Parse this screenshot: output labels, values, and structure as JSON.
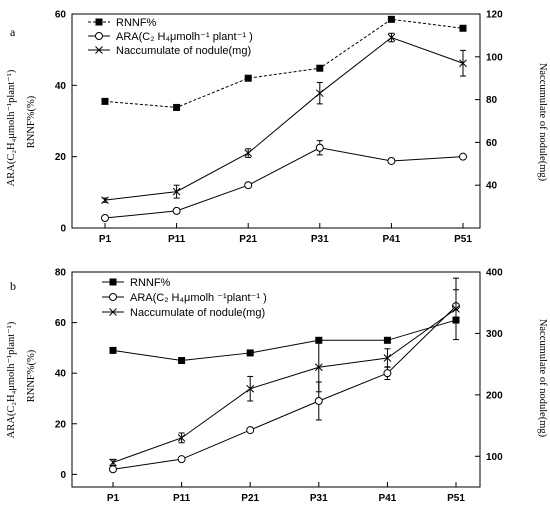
{
  "chart_data": [
    {
      "type": "line",
      "panel_label": "a",
      "categories": [
        "P1",
        "P11",
        "P21",
        "P31",
        "P41",
        "P51"
      ],
      "ylabel_left": "ARA(C₂H₄μmolh⁻¹plant⁻¹)",
      "ylabel_left2": "RNNF%(%)",
      "ylabel_right": "Naccumulate of nodule(mg)",
      "ylim_left": [
        0,
        60
      ],
      "yticks_left": [
        0,
        20,
        40,
        60
      ],
      "ylim_right": [
        20,
        120
      ],
      "yticks_right": [
        40,
        60,
        80,
        100,
        120
      ],
      "legend_position": "top-left",
      "series": [
        {
          "name": "RNNF%",
          "axis": "left",
          "marker": "square",
          "line": "dashed",
          "values": [
            35.5,
            33.8,
            42.0,
            44.8,
            58.5,
            56.0
          ],
          "errors": [
            0,
            0,
            0,
            0,
            0,
            0
          ]
        },
        {
          "name": "ARA(C₂ H₄μmolh⁻¹ plant⁻¹ )",
          "axis": "left",
          "marker": "circle",
          "line": "solid",
          "values": [
            2.8,
            4.8,
            12.0,
            22.5,
            18.8,
            20.0
          ],
          "errors": [
            0,
            0.5,
            0.5,
            2.0,
            0.3,
            0.3
          ]
        },
        {
          "name": "Naccumulate of nodule(mg)",
          "axis": "right",
          "marker": "x",
          "line": "solid",
          "values": [
            33,
            37,
            55,
            83,
            109,
            97
          ],
          "errors": [
            1,
            3,
            2,
            5,
            2,
            6
          ]
        }
      ]
    },
    {
      "type": "line",
      "panel_label": "b",
      "categories": [
        "P1",
        "P11",
        "P21",
        "P31",
        "P41",
        "P51"
      ],
      "ylabel_left": "ARA(C₂H₄μmolh⁻¹plant⁻¹)",
      "ylabel_left2": "RNNF%(%)",
      "ylabel_right": "Naccumulate of nodule(mg)",
      "ylim_left": [
        -5,
        80
      ],
      "yticks_left": [
        0,
        20,
        40,
        60,
        80
      ],
      "ylim_right": [
        50,
        400
      ],
      "yticks_right": [
        100,
        200,
        300,
        400
      ],
      "legend_position": "top-left",
      "series": [
        {
          "name": "RNNF%",
          "axis": "left",
          "marker": "square",
          "line": "solid",
          "values": [
            49.0,
            45.0,
            48.0,
            53.0,
            53.0,
            61.0
          ],
          "errors": [
            0,
            0,
            0,
            0,
            0,
            0
          ]
        },
        {
          "name": "ARA(C₂ H₄μmolh ⁻¹plant⁻¹ )",
          "axis": "left",
          "marker": "circle",
          "line": "solid",
          "values": [
            2.0,
            6.0,
            17.5,
            29.0,
            40.0,
            66.5
          ],
          "errors": [
            0.5,
            0.5,
            0.5,
            7.5,
            2.5,
            6.5
          ]
        },
        {
          "name": "Naccumulate of nodule(mg)",
          "axis": "right",
          "marker": "x",
          "line": "solid",
          "values": [
            90,
            130,
            210,
            245,
            260,
            340
          ],
          "errors": [
            5,
            8,
            20,
            40,
            15,
            50
          ]
        }
      ]
    }
  ]
}
